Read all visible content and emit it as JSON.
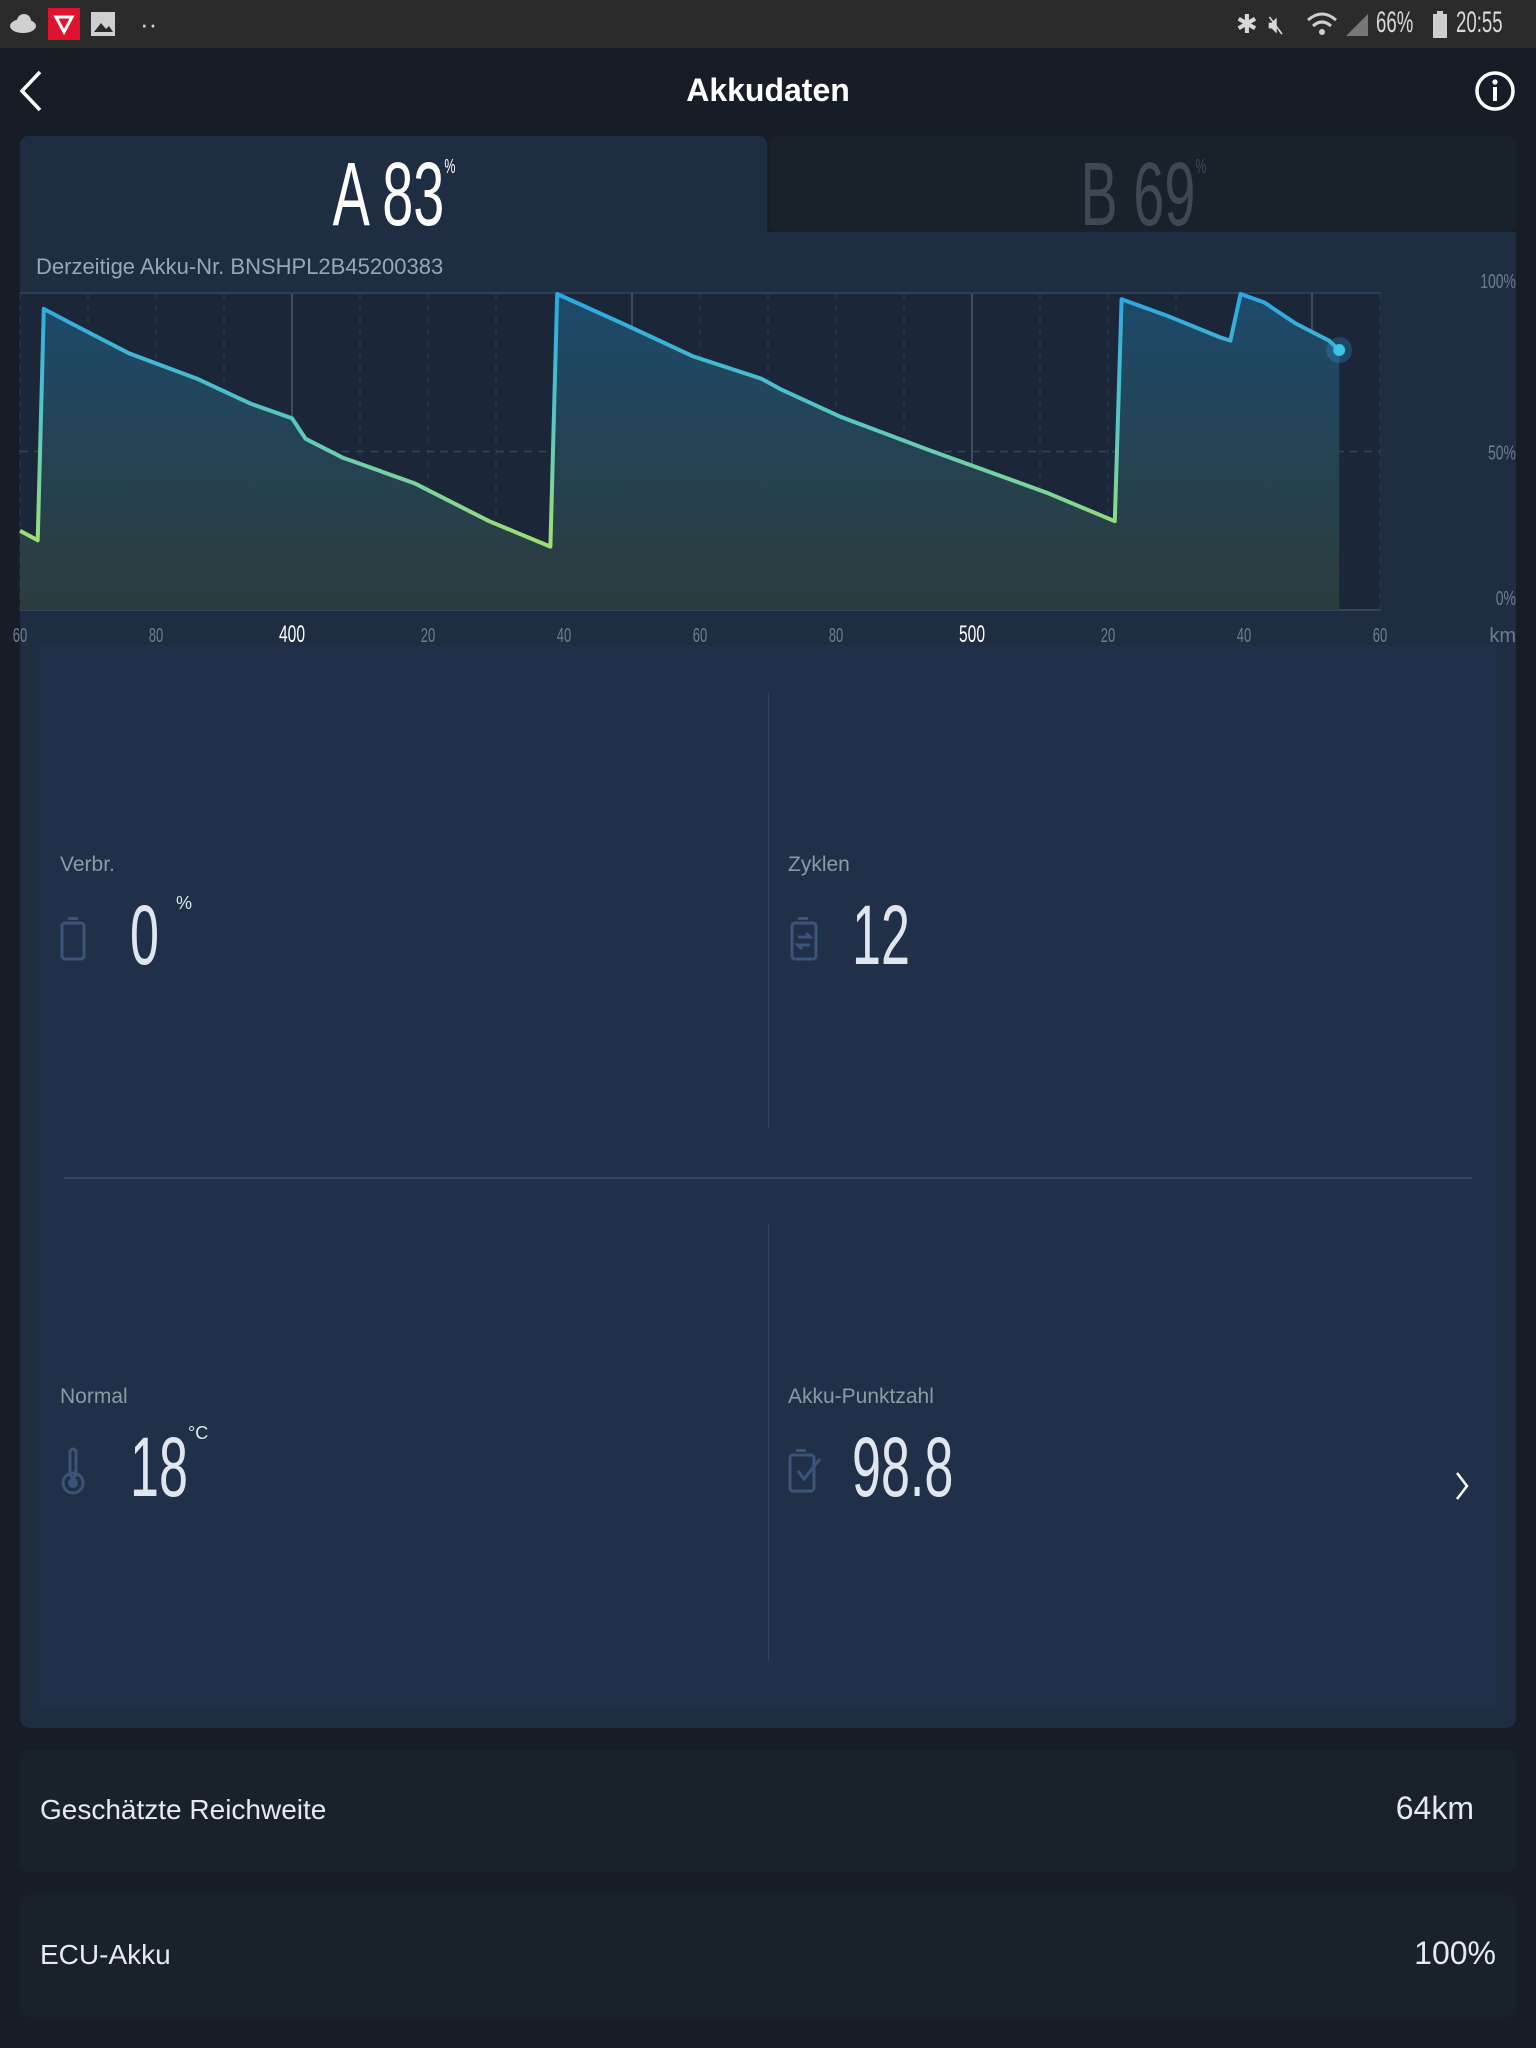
{
  "status_bar": {
    "battery": "66%",
    "time": "20:55",
    "icons": [
      "cloud-icon",
      "app-notification-icon",
      "image-icon",
      "more-dots-icon",
      "bluetooth-icon",
      "mute-icon",
      "wifi-icon",
      "signal-icon",
      "battery-icon"
    ]
  },
  "header": {
    "title": "Akkudaten",
    "back_icon": "chevron-left-icon",
    "info_icon": "info-icon"
  },
  "tabs": [
    {
      "letter": "A",
      "value": "83",
      "unit": "%",
      "active": true
    },
    {
      "letter": "B",
      "value": "69",
      "unit": "%",
      "active": false
    }
  ],
  "chart_subtitle": "Derzeitige Akku-Nr. BNSHPL2B45200383",
  "chart_data": {
    "type": "area",
    "title": "Derzeitige Akku-Nr. BNSHPL2B45200383",
    "xlabel": "km",
    "ylabel": "",
    "xlim": [
      360,
      560
    ],
    "ylim": [
      0,
      100
    ],
    "x_ticks": [
      {
        "value": 360,
        "label": "60"
      },
      {
        "value": 380,
        "label": "80"
      },
      {
        "value": 400,
        "label": "400",
        "major": true
      },
      {
        "value": 420,
        "label": "20"
      },
      {
        "value": 440,
        "label": "40"
      },
      {
        "value": 460,
        "label": "60"
      },
      {
        "value": 480,
        "label": "80"
      },
      {
        "value": 500,
        "label": "500",
        "major": true
      },
      {
        "value": 520,
        "label": "20"
      },
      {
        "value": 540,
        "label": "40"
      },
      {
        "value": 560,
        "label": "60"
      }
    ],
    "x_unit_label": "km",
    "y_ticks": [
      {
        "value": 100,
        "label": "100%"
      },
      {
        "value": 50,
        "label": "50%"
      },
      {
        "value": 0,
        "label": "0%"
      }
    ],
    "x": [
      360,
      362.6,
      363.5,
      367,
      371.5,
      376,
      386,
      394,
      400,
      402,
      407.5,
      418,
      429,
      438,
      439,
      449,
      459,
      469,
      472,
      480.6,
      493.6,
      511,
      521,
      522,
      528.5,
      536.5,
      538,
      539.5,
      543,
      547.5,
      552.5,
      554
    ],
    "y": [
      25,
      22,
      95,
      91,
      86,
      81,
      73,
      65,
      60.5,
      54,
      48,
      40,
      28,
      20,
      99.7,
      90,
      80,
      73,
      69.5,
      61,
      50.5,
      37,
      28,
      98,
      93,
      86,
      85,
      99.7,
      97,
      90.5,
      85,
      82
    ],
    "colors": {
      "line_top": "#2aa7e3",
      "line_bottom": "#a6e36a"
    }
  },
  "stats": [
    {
      "label": "Verbr.",
      "value": "0",
      "unit": "%",
      "icon": "battery-icon"
    },
    {
      "label": "Zyklen",
      "value": "12",
      "unit": "",
      "icon": "battery-cycle-icon"
    },
    {
      "label": "Normal",
      "value": "18",
      "unit": "°C",
      "icon": "thermometer-icon"
    },
    {
      "label": "Akku-Punktzahl",
      "value": "98.8",
      "unit": "",
      "icon": "battery-check-icon"
    }
  ],
  "rows": [
    {
      "label": "Geschätzte Reichweite",
      "value": "64km"
    },
    {
      "label": "ECU-Akku",
      "value": "100%"
    }
  ]
}
